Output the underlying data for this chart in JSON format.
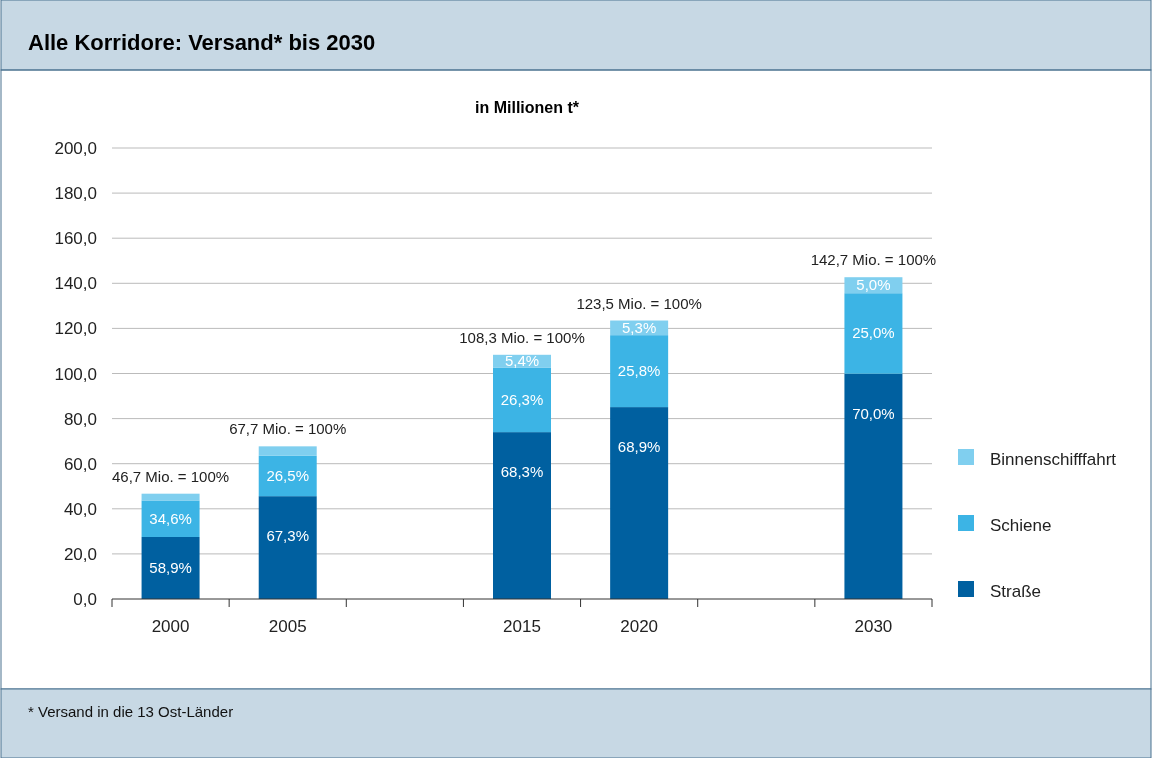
{
  "chart_data": {
    "type": "bar",
    "stacked": true,
    "title": "Alle Korridore: Versand* bis 2030",
    "subtitle": "in Millionen t*",
    "categories": [
      "2000",
      "2005",
      null,
      "2015",
      "2020",
      null,
      "2030"
    ],
    "series": [
      {
        "name": "Straße",
        "color": "#0060a0",
        "values": [
          27.5,
          45.6,
          null,
          74.0,
          85.1,
          null,
          99.9
        ]
      },
      {
        "name": "Schiene",
        "color": "#3cb4e5",
        "values": [
          16.2,
          17.9,
          null,
          28.5,
          31.9,
          null,
          35.7
        ]
      },
      {
        "name": "Binnenschifffahrt",
        "color": "#80cfef",
        "values": [
          3.0,
          4.2,
          null,
          5.8,
          6.5,
          null,
          7.1
        ]
      }
    ],
    "totals": [
      "46,7 Mio. = 100%",
      "67,7 Mio. = 100%",
      null,
      "108,3 Mio. = 100%",
      "123,5 Mio. = 100%",
      null,
      "142,7 Mio. = 100%"
    ],
    "ylim": [
      0,
      200
    ],
    "yticks": [
      {
        "value": 0,
        "label": "0,0"
      },
      {
        "value": 20,
        "label": "20,0"
      },
      {
        "value": 40,
        "label": "40,0"
      },
      {
        "value": 60,
        "label": "60,0"
      },
      {
        "value": 80,
        "label": "80,0"
      },
      {
        "value": 100,
        "label": "100,0"
      },
      {
        "value": 120,
        "label": "120,0"
      },
      {
        "value": 140,
        "label": "140,0"
      },
      {
        "value": 160,
        "label": "160,0"
      },
      {
        "value": 180,
        "label": "180,0"
      },
      {
        "value": 200,
        "label": "200,0"
      }
    ],
    "grid": "y",
    "legend": "right",
    "annotations": [
      "* Versand in die 13 Ost-Länder",
      {
        "text": "58,9%",
        "x": "2000",
        "y": 27.5
      },
      {
        "text": "34,6%",
        "x": "2000",
        "y": 43.7
      },
      {
        "text": "67,3%",
        "x": "2005",
        "y": 45.6
      },
      {
        "text": "26,5%",
        "x": "2005",
        "y": 63.5
      },
      {
        "text": "68,3%",
        "x": "2015",
        "y": 74.0
      },
      {
        "text": "26,3%",
        "x": "2015",
        "y": 102.5
      },
      {
        "text": "5,4%",
        "x": "2015",
        "y": 108.3
      },
      {
        "text": "68,9%",
        "x": "2020",
        "y": 85.1
      },
      {
        "text": "25,8%",
        "x": "2020",
        "y": 117.0
      },
      {
        "text": "5,3%",
        "x": "2020",
        "y": 123.5
      },
      {
        "text": "70,0%",
        "x": "2030",
        "y": 99.9
      },
      {
        "text": "25,0%",
        "x": "2030",
        "y": 135.6
      },
      {
        "text": "5,0%",
        "x": "2030",
        "y": 142.7
      }
    ]
  }
}
